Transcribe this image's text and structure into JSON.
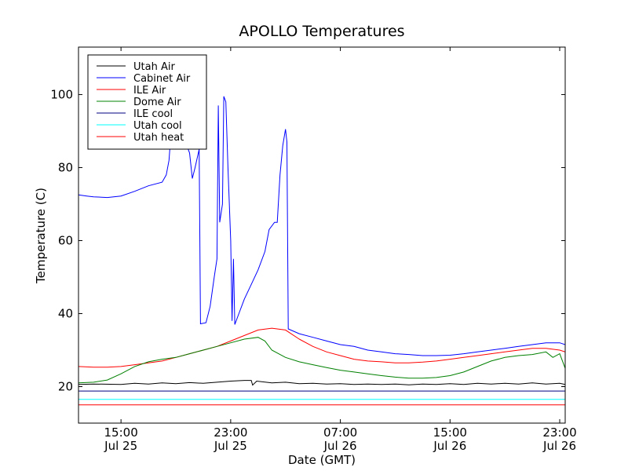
{
  "chart_data": {
    "type": "line",
    "title": "APOLLO Temperatures",
    "xlabel": "Date (GMT)",
    "ylabel": "Temperature (C)",
    "xlim": [
      11.9,
      47.4
    ],
    "ylim": [
      10,
      113
    ],
    "x_ticks": [
      {
        "x": 15,
        "line1": "15:00",
        "line2": "Jul 25"
      },
      {
        "x": 23,
        "line1": "23:00",
        "line2": "Jul 25"
      },
      {
        "x": 31,
        "line1": "07:00",
        "line2": "Jul 26"
      },
      {
        "x": 39,
        "line1": "15:00",
        "line2": "Jul 26"
      },
      {
        "x": 47,
        "line1": "23:00",
        "line2": "Jul 26"
      }
    ],
    "y_ticks": [
      {
        "y": 20,
        "label": "20"
      },
      {
        "y": 40,
        "label": "40"
      },
      {
        "y": 60,
        "label": "60"
      },
      {
        "y": 80,
        "label": "80"
      },
      {
        "y": 100,
        "label": "100"
      }
    ],
    "legend_position": "top-left",
    "series": [
      {
        "name": "Utah Air",
        "color": "#000000",
        "points": [
          [
            11.9,
            20.6
          ],
          [
            13,
            20.7
          ],
          [
            15,
            20.6
          ],
          [
            16,
            20.9
          ],
          [
            17,
            20.7
          ],
          [
            18,
            21.0
          ],
          [
            19,
            20.8
          ],
          [
            20,
            21.1
          ],
          [
            21,
            20.9
          ],
          [
            22,
            21.2
          ],
          [
            23,
            21.5
          ],
          [
            24,
            21.7
          ],
          [
            24.5,
            21.7
          ],
          [
            24.6,
            20.4
          ],
          [
            24.9,
            21.5
          ],
          [
            26,
            21.0
          ],
          [
            27,
            21.2
          ],
          [
            28,
            20.8
          ],
          [
            29,
            20.9
          ],
          [
            30,
            20.7
          ],
          [
            31,
            20.8
          ],
          [
            32,
            20.6
          ],
          [
            33,
            20.7
          ],
          [
            34,
            20.6
          ],
          [
            35,
            20.7
          ],
          [
            36,
            20.5
          ],
          [
            37,
            20.7
          ],
          [
            38,
            20.6
          ],
          [
            39,
            20.8
          ],
          [
            40,
            20.6
          ],
          [
            41,
            20.9
          ],
          [
            42,
            20.7
          ],
          [
            43,
            20.9
          ],
          [
            44,
            20.7
          ],
          [
            45,
            21.0
          ],
          [
            46,
            20.7
          ],
          [
            47,
            20.9
          ],
          [
            47.4,
            20.6
          ]
        ]
      },
      {
        "name": "Cabinet Air",
        "color": "#0000ff",
        "points": [
          [
            11.9,
            72.5
          ],
          [
            12.5,
            72.2
          ],
          [
            13,
            72.0
          ],
          [
            14,
            71.8
          ],
          [
            15,
            72.2
          ],
          [
            16,
            73.5
          ],
          [
            17,
            75.0
          ],
          [
            18,
            76.0
          ],
          [
            18.3,
            78.0
          ],
          [
            18.5,
            82.0
          ],
          [
            18.6,
            87.0
          ],
          [
            18.8,
            88.0
          ],
          [
            19.4,
            87.0
          ],
          [
            19.8,
            86.0
          ],
          [
            20,
            84.0
          ],
          [
            20.2,
            77.0
          ],
          [
            20.4,
            80.0
          ],
          [
            20.7,
            85.0
          ],
          [
            20.8,
            37.2
          ],
          [
            21.2,
            37.5
          ],
          [
            21.5,
            42.0
          ],
          [
            21.8,
            50.0
          ],
          [
            22.0,
            55.0
          ],
          [
            22.1,
            97.0
          ],
          [
            22.2,
            65.0
          ],
          [
            22.4,
            70.0
          ],
          [
            22.5,
            99.5
          ],
          [
            22.65,
            98.0
          ],
          [
            22.8,
            80.0
          ],
          [
            23.0,
            60.0
          ],
          [
            23.1,
            38.0
          ],
          [
            23.2,
            55.0
          ],
          [
            23.3,
            37.0
          ],
          [
            23.6,
            40.0
          ],
          [
            24.0,
            44.0
          ],
          [
            24.5,
            48.0
          ],
          [
            25.0,
            52.0
          ],
          [
            25.5,
            57.0
          ],
          [
            25.8,
            63.0
          ],
          [
            26.2,
            65.0
          ],
          [
            26.4,
            65.0
          ],
          [
            26.6,
            78.0
          ],
          [
            26.8,
            86.0
          ],
          [
            27.0,
            90.5
          ],
          [
            27.1,
            87.0
          ],
          [
            27.2,
            35.8
          ],
          [
            28,
            34.5
          ],
          [
            29,
            33.5
          ],
          [
            30,
            32.5
          ],
          [
            31,
            31.5
          ],
          [
            32,
            31.0
          ],
          [
            33,
            30.0
          ],
          [
            34,
            29.5
          ],
          [
            35,
            29.0
          ],
          [
            36,
            28.8
          ],
          [
            37,
            28.5
          ],
          [
            38,
            28.5
          ],
          [
            39,
            28.6
          ],
          [
            40,
            29.0
          ],
          [
            41,
            29.5
          ],
          [
            42,
            30.0
          ],
          [
            43,
            30.5
          ],
          [
            44,
            31.0
          ],
          [
            45,
            31.5
          ],
          [
            46,
            32.0
          ],
          [
            47,
            32.0
          ],
          [
            47.4,
            31.5
          ]
        ]
      },
      {
        "name": "ILE Air",
        "color": "#ff0000",
        "points": [
          [
            11.9,
            25.5
          ],
          [
            13,
            25.3
          ],
          [
            14,
            25.3
          ],
          [
            15,
            25.5
          ],
          [
            16,
            26.0
          ],
          [
            17,
            26.5
          ],
          [
            18,
            27.0
          ],
          [
            19,
            28.0
          ],
          [
            20,
            29.0
          ],
          [
            21,
            30.0
          ],
          [
            22,
            31.0
          ],
          [
            23,
            32.5
          ],
          [
            24,
            34.0
          ],
          [
            25,
            35.5
          ],
          [
            26,
            36.0
          ],
          [
            27,
            35.5
          ],
          [
            28,
            33.0
          ],
          [
            29,
            31.0
          ],
          [
            30,
            29.5
          ],
          [
            31,
            28.5
          ],
          [
            32,
            27.5
          ],
          [
            33,
            27.0
          ],
          [
            34,
            26.8
          ],
          [
            35,
            26.5
          ],
          [
            36,
            26.5
          ],
          [
            37,
            26.7
          ],
          [
            38,
            27.0
          ],
          [
            39,
            27.5
          ],
          [
            40,
            28.0
          ],
          [
            41,
            28.5
          ],
          [
            42,
            29.0
          ],
          [
            43,
            29.5
          ],
          [
            44,
            30.0
          ],
          [
            45,
            30.5
          ],
          [
            46,
            30.5
          ],
          [
            47,
            30.0
          ],
          [
            47.4,
            29.5
          ]
        ]
      },
      {
        "name": "Dome Air",
        "color": "#008000",
        "points": [
          [
            11.9,
            21.0
          ],
          [
            13,
            21.2
          ],
          [
            14,
            21.8
          ],
          [
            15,
            23.5
          ],
          [
            16,
            25.5
          ],
          [
            17,
            26.8
          ],
          [
            18,
            27.5
          ],
          [
            19,
            28.0
          ],
          [
            20,
            29.0
          ],
          [
            21,
            30.0
          ],
          [
            22,
            31.0
          ],
          [
            23,
            32.0
          ],
          [
            24,
            33.0
          ],
          [
            25,
            33.5
          ],
          [
            25.5,
            32.5
          ],
          [
            26,
            30.0
          ],
          [
            27,
            28.0
          ],
          [
            28,
            26.8
          ],
          [
            29,
            26.0
          ],
          [
            30,
            25.2
          ],
          [
            31,
            24.5
          ],
          [
            32,
            24.0
          ],
          [
            33,
            23.5
          ],
          [
            34,
            23.0
          ],
          [
            35,
            22.6
          ],
          [
            36,
            22.3
          ],
          [
            37,
            22.3
          ],
          [
            38,
            22.5
          ],
          [
            39,
            23.0
          ],
          [
            40,
            24.0
          ],
          [
            41,
            25.5
          ],
          [
            42,
            27.0
          ],
          [
            43,
            28.0
          ],
          [
            44,
            28.5
          ],
          [
            45,
            28.8
          ],
          [
            46,
            29.5
          ],
          [
            46.5,
            28.0
          ],
          [
            47,
            29.0
          ],
          [
            47.4,
            25.0
          ]
        ]
      },
      {
        "name": "ILE cool",
        "color": "#000080",
        "points": [
          [
            11.9,
            18.8
          ],
          [
            47.4,
            18.8
          ]
        ]
      },
      {
        "name": "Utah cool",
        "color": "#00ffff",
        "points": [
          [
            11.9,
            16.5
          ],
          [
            47.4,
            16.5
          ]
        ]
      },
      {
        "name": "Utah heat",
        "color": "#ff0000",
        "points": [
          [
            11.9,
            15.0
          ],
          [
            47.4,
            15.0
          ]
        ]
      }
    ]
  }
}
